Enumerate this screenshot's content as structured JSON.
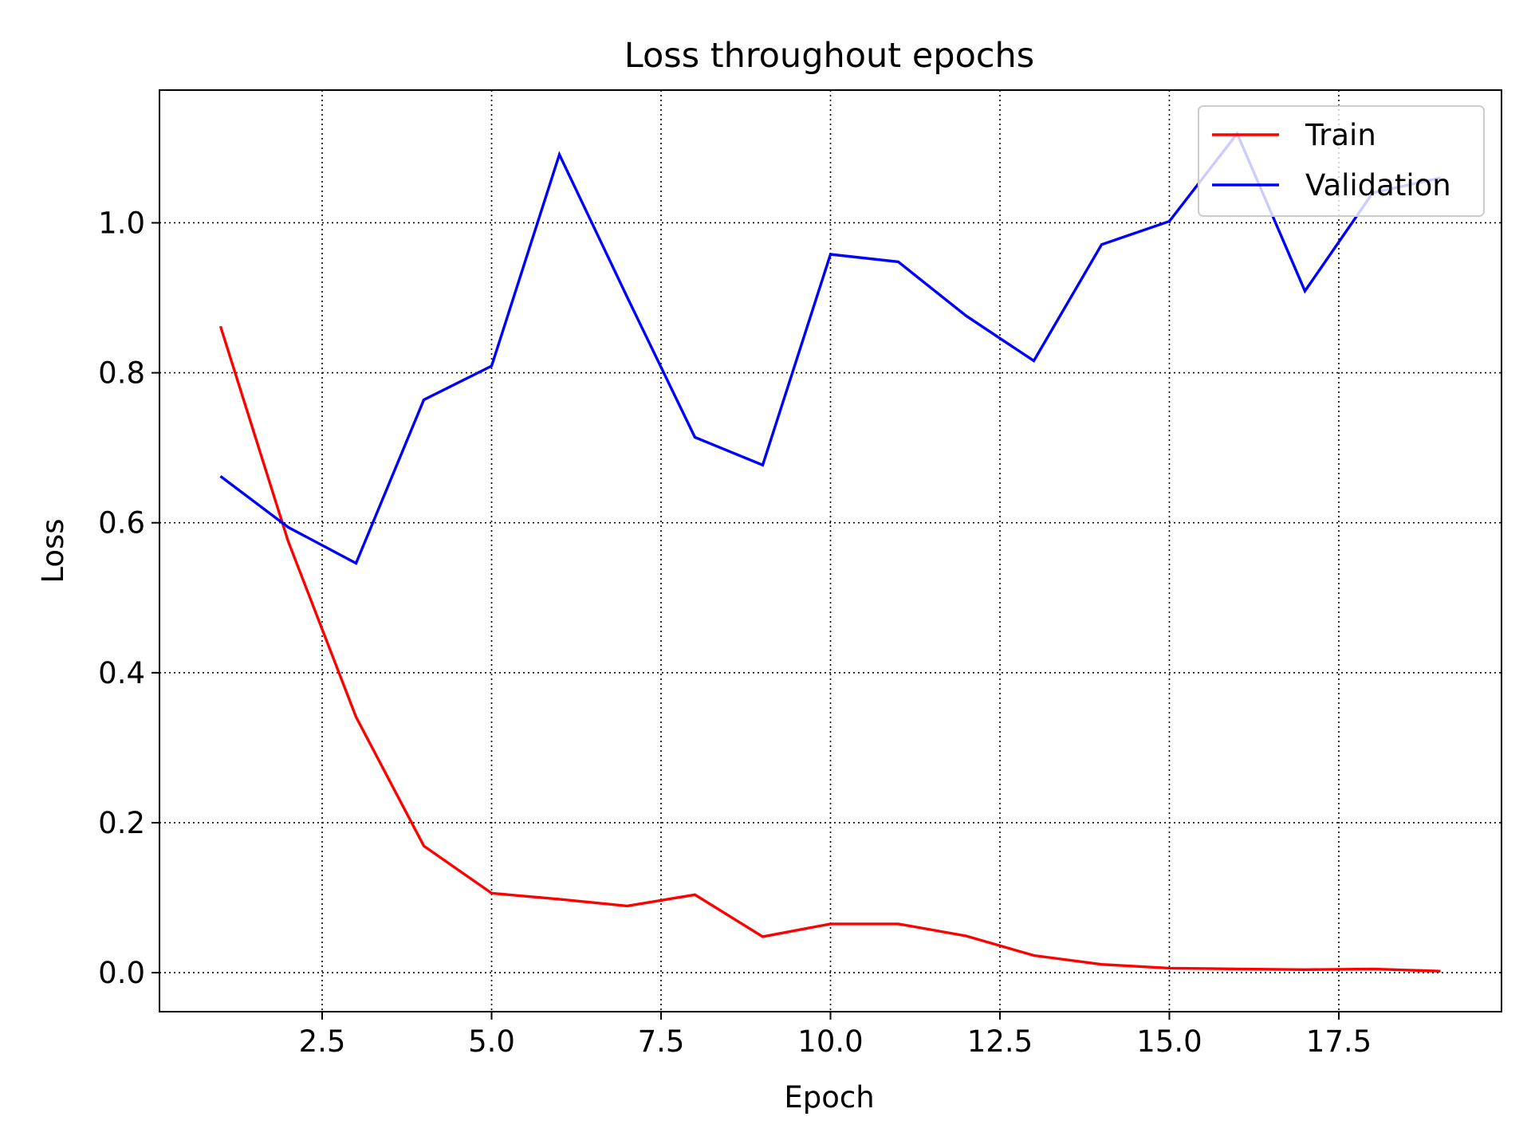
{
  "chart_data": {
    "type": "line",
    "title": "Loss throughout epochs",
    "xlabel": "Epoch",
    "ylabel": "Loss",
    "xlim": [
      0.1,
      19.9
    ],
    "ylim": [
      -0.052,
      1.177
    ],
    "xticks": [
      2.5,
      5.0,
      7.5,
      10.0,
      12.5,
      15.0,
      17.5
    ],
    "xtick_labels": [
      "2.5",
      "5.0",
      "7.5",
      "10.0",
      "12.5",
      "15.0",
      "17.5"
    ],
    "yticks": [
      0.0,
      0.2,
      0.4,
      0.6,
      0.8,
      1.0
    ],
    "ytick_labels": [
      "0.0",
      "0.2",
      "0.4",
      "0.6",
      "0.8",
      "1.0"
    ],
    "grid": true,
    "legend_position": "top-right",
    "x": [
      1,
      2,
      3,
      4,
      5,
      6,
      7,
      8,
      9,
      10,
      11,
      12,
      13,
      14,
      15,
      16,
      17,
      18,
      19
    ],
    "series": [
      {
        "name": "Train",
        "color": "#ff0000",
        "values": [
          0.862,
          0.575,
          0.341,
          0.169,
          0.106,
          0.098,
          0.089,
          0.104,
          0.048,
          0.065,
          0.065,
          0.049,
          0.023,
          0.011,
          0.006,
          0.005,
          0.004,
          0.005,
          0.002
        ]
      },
      {
        "name": "Validation",
        "color": "#0000ff",
        "values": [
          0.662,
          0.594,
          0.546,
          0.764,
          0.809,
          1.091,
          0.901,
          0.714,
          0.677,
          0.958,
          0.948,
          0.876,
          0.816,
          0.971,
          1.002,
          1.119,
          0.909,
          1.04,
          1.06
        ]
      }
    ]
  }
}
